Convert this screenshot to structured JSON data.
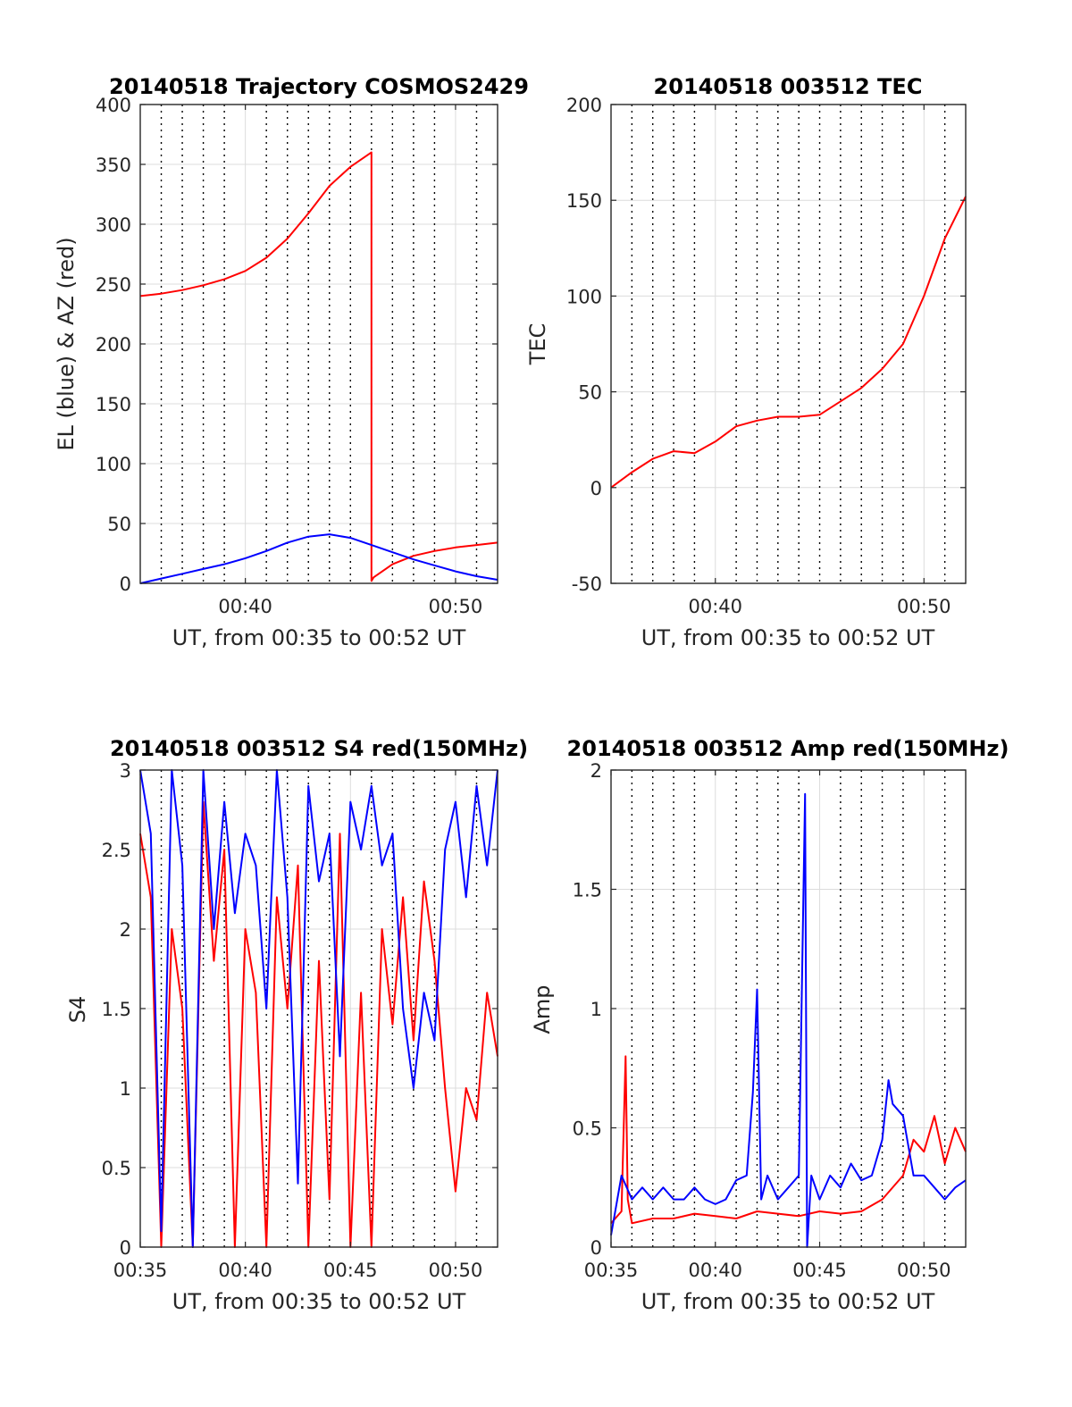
{
  "figure": {
    "background": "#ffffff",
    "colors": {
      "red": "#ff0000",
      "blue": "#0000ff",
      "grid": "#dcdcdc",
      "vgrid": "#000000",
      "axis": "#262626"
    }
  },
  "chart_data": [
    {
      "type": "line",
      "title": "20140518 Trajectory COSMOS2429",
      "xlabel": "UT, from 00:35 to 00:52 UT",
      "ylabel": "EL (blue) & AZ (red)",
      "xlim": [
        35,
        52
      ],
      "ylim": [
        0,
        400
      ],
      "x_ticks": [
        {
          "v": 40,
          "label": "00:40"
        },
        {
          "v": 50,
          "label": "00:50"
        }
      ],
      "y_ticks": [
        {
          "v": 0,
          "label": "0"
        },
        {
          "v": 50,
          "label": "50"
        },
        {
          "v": 100,
          "label": "100"
        },
        {
          "v": 150,
          "label": "150"
        },
        {
          "v": 200,
          "label": "200"
        },
        {
          "v": 250,
          "label": "250"
        },
        {
          "v": 300,
          "label": "300"
        },
        {
          "v": 350,
          "label": "350"
        },
        {
          "v": 400,
          "label": "400"
        }
      ],
      "vgrid_minutes": [
        36,
        37,
        38,
        39,
        41,
        42,
        43,
        44,
        45,
        46,
        47,
        48,
        49,
        51
      ],
      "series": [
        {
          "color": "#ff0000",
          "x": [
            35,
            36,
            37,
            38,
            39,
            40,
            41,
            42,
            43,
            44,
            45,
            46.0,
            46.0,
            46.1,
            47,
            48,
            49,
            50,
            51,
            52
          ],
          "y": [
            240,
            242,
            245,
            249,
            254,
            261,
            272,
            288,
            309,
            332,
            348,
            360,
            2,
            5,
            16,
            23,
            27,
            30,
            32,
            34
          ]
        },
        {
          "color": "#0000ff",
          "x": [
            35,
            36,
            37,
            38,
            39,
            40,
            41,
            42,
            43,
            44,
            45,
            46,
            47,
            48,
            49,
            50,
            51,
            52
          ],
          "y": [
            0,
            4,
            8,
            12,
            16,
            21,
            27,
            34,
            39,
            41,
            38,
            32,
            26,
            20,
            15,
            10,
            6,
            3
          ]
        }
      ]
    },
    {
      "type": "line",
      "title": "20140518 003512 TEC",
      "xlabel": "UT, from 00:35 to 00:52 UT",
      "ylabel": "TEC",
      "xlim": [
        35,
        52
      ],
      "ylim": [
        -50,
        200
      ],
      "x_ticks": [
        {
          "v": 40,
          "label": "00:40"
        },
        {
          "v": 50,
          "label": "00:50"
        }
      ],
      "y_ticks": [
        {
          "v": -50,
          "label": "-50"
        },
        {
          "v": 0,
          "label": "0"
        },
        {
          "v": 50,
          "label": "50"
        },
        {
          "v": 100,
          "label": "100"
        },
        {
          "v": 150,
          "label": "150"
        },
        {
          "v": 200,
          "label": "200"
        }
      ],
      "vgrid_minutes": [
        36,
        37,
        38,
        39,
        41,
        42,
        43,
        44,
        45,
        46,
        47,
        48,
        49,
        51
      ],
      "series": [
        {
          "color": "#ff0000",
          "x": [
            35,
            36,
            37,
            38,
            39,
            40,
            41,
            42,
            43,
            44,
            45,
            46,
            47,
            48,
            49,
            50,
            51,
            52
          ],
          "y": [
            0,
            8,
            15,
            19,
            18,
            24,
            32,
            35,
            37,
            37,
            38,
            45,
            52,
            62,
            75,
            100,
            130,
            152
          ]
        }
      ]
    },
    {
      "type": "line",
      "title": "20140518 003512 S4 red(150MHz)",
      "xlabel": "UT, from 00:35 to 00:52 UT",
      "ylabel": "S4",
      "xlim": [
        35,
        52
      ],
      "ylim": [
        0,
        3
      ],
      "x_ticks": [
        {
          "v": 35,
          "label": "00:35"
        },
        {
          "v": 40,
          "label": "00:40"
        },
        {
          "v": 45,
          "label": "00:45"
        },
        {
          "v": 50,
          "label": "00:50"
        }
      ],
      "y_ticks": [
        {
          "v": 0,
          "label": "0"
        },
        {
          "v": 0.5,
          "label": "0.5"
        },
        {
          "v": 1,
          "label": "1"
        },
        {
          "v": 1.5,
          "label": "1.5"
        },
        {
          "v": 2,
          "label": "2"
        },
        {
          "v": 2.5,
          "label": "2.5"
        },
        {
          "v": 3,
          "label": "3"
        }
      ],
      "vgrid_minutes": [
        36,
        37,
        38,
        39,
        41,
        42,
        43,
        44,
        46,
        47,
        48,
        49,
        51
      ],
      "series": [
        {
          "color": "#ff0000",
          "x": [
            35,
            35.5,
            36,
            36.5,
            37,
            37.5,
            38,
            38.5,
            39,
            39.5,
            40,
            40.5,
            41,
            41.5,
            42,
            42.5,
            43,
            43.5,
            44,
            44.5,
            45,
            45.5,
            46,
            46.5,
            47,
            47.5,
            48,
            48.5,
            49,
            49.5,
            50,
            50.5,
            51,
            51.5,
            52
          ],
          "y": [
            2.6,
            2.2,
            0.0,
            2.0,
            1.5,
            0.0,
            2.8,
            1.8,
            2.5,
            0.0,
            2.0,
            1.6,
            0.0,
            2.2,
            1.5,
            2.4,
            0.0,
            1.8,
            0.3,
            2.6,
            0.0,
            1.6,
            0.0,
            2.0,
            1.4,
            2.2,
            1.3,
            2.3,
            1.8,
            1.0,
            0.35,
            1.0,
            0.8,
            1.6,
            1.2
          ]
        },
        {
          "color": "#0000ff",
          "x": [
            35,
            35.5,
            36,
            36.5,
            37,
            37.5,
            38,
            38.5,
            39,
            39.5,
            40,
            40.5,
            41,
            41.5,
            42,
            42.5,
            43,
            43.5,
            44,
            44.5,
            45,
            45.5,
            46,
            46.5,
            47,
            47.5,
            48,
            48.5,
            49,
            49.5,
            50,
            50.5,
            51,
            51.5,
            52
          ],
          "y": [
            3.0,
            2.6,
            0.1,
            3.0,
            2.4,
            0.0,
            3.0,
            2.0,
            2.8,
            2.1,
            2.6,
            2.4,
            1.5,
            3.0,
            2.2,
            0.4,
            2.9,
            2.3,
            2.6,
            1.2,
            2.8,
            2.5,
            2.9,
            2.4,
            2.6,
            1.5,
            1.0,
            1.6,
            1.3,
            2.5,
            2.8,
            2.2,
            2.9,
            2.4,
            3.0
          ]
        }
      ]
    },
    {
      "type": "line",
      "title": "20140518 003512 Amp red(150MHz)",
      "xlabel": "UT, from 00:35 to 00:52 UT",
      "ylabel": "Amp",
      "xlim": [
        35,
        52
      ],
      "ylim": [
        0,
        2
      ],
      "x_ticks": [
        {
          "v": 35,
          "label": "00:35"
        },
        {
          "v": 40,
          "label": "00:40"
        },
        {
          "v": 45,
          "label": "00:45"
        },
        {
          "v": 50,
          "label": "00:50"
        }
      ],
      "y_ticks": [
        {
          "v": 0,
          "label": "0"
        },
        {
          "v": 0.5,
          "label": "0.5"
        },
        {
          "v": 1,
          "label": "1"
        },
        {
          "v": 1.5,
          "label": "1.5"
        },
        {
          "v": 2,
          "label": "2"
        }
      ],
      "vgrid_minutes": [
        36,
        37,
        38,
        39,
        41,
        42,
        43,
        44,
        46,
        47,
        48,
        49,
        51
      ],
      "series": [
        {
          "color": "#ff0000",
          "x": [
            35,
            35.5,
            35.7,
            35.8,
            36.0,
            37,
            38,
            39,
            40,
            41,
            42,
            43,
            44,
            45,
            46,
            47,
            48,
            49,
            49.5,
            50,
            50.5,
            51,
            51.5,
            52
          ],
          "y": [
            0.1,
            0.15,
            0.8,
            0.2,
            0.1,
            0.12,
            0.12,
            0.14,
            0.13,
            0.12,
            0.15,
            0.14,
            0.13,
            0.15,
            0.14,
            0.15,
            0.2,
            0.3,
            0.45,
            0.4,
            0.55,
            0.35,
            0.5,
            0.4
          ]
        },
        {
          "color": "#0000ff",
          "x": [
            35,
            35.5,
            36,
            36.5,
            37,
            37.5,
            38,
            38.5,
            39,
            39.5,
            40,
            40.5,
            41,
            41.5,
            41.8,
            42.0,
            42.2,
            42.5,
            43,
            43.5,
            44,
            44.3,
            44.4,
            44.6,
            44.8,
            45,
            45.5,
            46,
            46.5,
            47,
            47.5,
            48,
            48.3,
            48.5,
            49,
            49.5,
            50,
            50.5,
            51,
            51.5,
            52
          ],
          "y": [
            0.05,
            0.3,
            0.2,
            0.25,
            0.2,
            0.25,
            0.2,
            0.2,
            0.25,
            0.2,
            0.18,
            0.2,
            0.28,
            0.3,
            0.65,
            1.08,
            0.2,
            0.3,
            0.2,
            0.25,
            0.3,
            1.9,
            0.0,
            0.3,
            0.25,
            0.2,
            0.3,
            0.25,
            0.35,
            0.28,
            0.3,
            0.45,
            0.7,
            0.6,
            0.55,
            0.3,
            0.3,
            0.25,
            0.2,
            0.25,
            0.28
          ]
        }
      ]
    }
  ]
}
